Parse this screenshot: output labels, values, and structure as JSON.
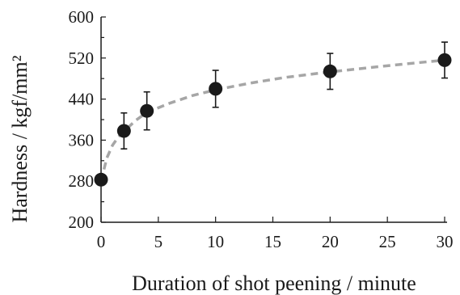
{
  "chart_data": {
    "type": "scatter",
    "xlabel": "Duration of shot peening / minute",
    "ylabel": "Hardness / kgf/mm²",
    "xlim": [
      0,
      30
    ],
    "ylim": [
      200,
      600
    ],
    "x_ticks": [
      "0",
      "5",
      "10",
      "15",
      "20",
      "25",
      "30"
    ],
    "y_ticks": [
      "200",
      "280",
      "360",
      "440",
      "520",
      "600"
    ],
    "x_tick_values": [
      0,
      5,
      10,
      15,
      20,
      25,
      30
    ],
    "y_tick_values": [
      200,
      280,
      360,
      440,
      520,
      600
    ],
    "grid": false,
    "series": [
      {
        "x": [
          0,
          2,
          4,
          10,
          20,
          30
        ],
        "y": [
          283,
          378,
          417,
          460,
          494,
          516
        ],
        "error": [
          0,
          35,
          37,
          36,
          35,
          35
        ]
      }
    ],
    "trend": {
      "style": "dashed",
      "x": [
        0,
        0.5,
        1,
        1.5,
        2,
        3,
        4,
        6,
        8,
        10,
        13,
        16,
        20,
        25,
        30
      ],
      "y": [
        280,
        325,
        350,
        366,
        377,
        398,
        414,
        432,
        447,
        458,
        471,
        482,
        493,
        505,
        516
      ]
    },
    "colors": {
      "marker": "#1a1a1a",
      "trend": "#a6a6a6",
      "axis": "#1a1a1a"
    }
  }
}
